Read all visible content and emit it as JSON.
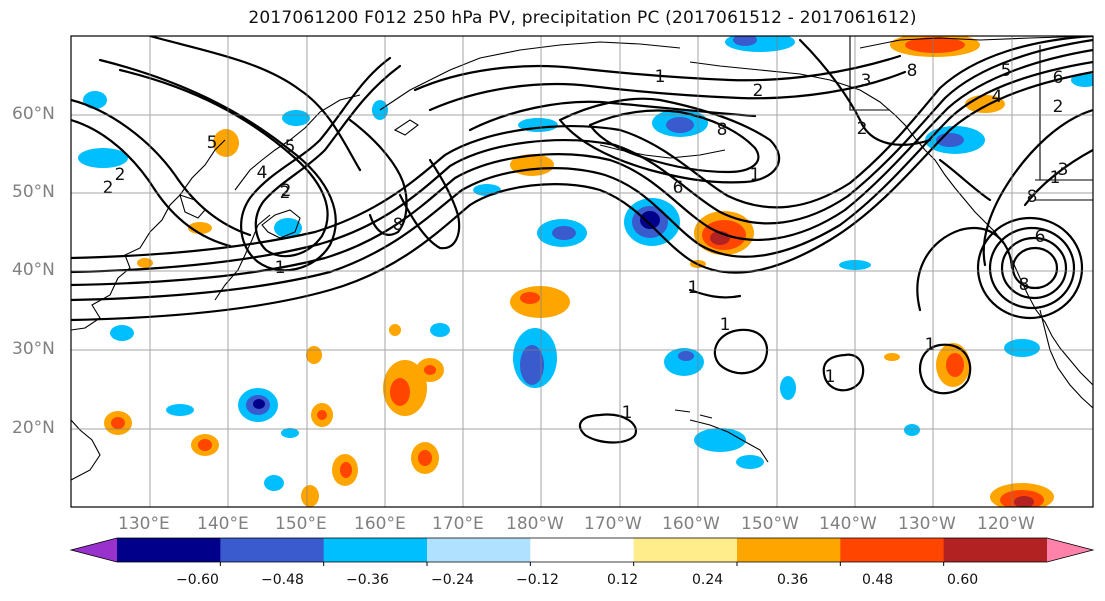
{
  "title": "2017061200 F012 250 hPa PV, precipitation PC (2017061512 - 2017061612)",
  "lat_labels": [
    "60°N",
    "50°N",
    "40°N",
    "30°N",
    "20°N"
  ],
  "lon_labels": [
    "130°E",
    "140°E",
    "150°E",
    "160°E",
    "170°E",
    "180°W",
    "170°W",
    "160°W",
    "150°W",
    "140°W",
    "130°W",
    "120°W"
  ],
  "colorbar": {
    "ticks": [
      "−0.60",
      "−0.48",
      "−0.36",
      "−0.24",
      "−0.12",
      "0.12",
      "0.24",
      "0.36",
      "0.48",
      "0.60"
    ],
    "colors": [
      "#9932cc",
      "#00008b",
      "#3a5bcd",
      "#00bfff",
      "#b0e2ff",
      "#ffffff",
      "#ffec8b",
      "#ffa500",
      "#ff4500",
      "#b22222",
      "#ff82ab"
    ]
  },
  "pv_contour_labels": [
    "2",
    "5",
    "5",
    "2",
    "4",
    "8",
    "2",
    "1",
    "1",
    "3",
    "2",
    "8",
    "6",
    "1",
    "2",
    "8",
    "5",
    "3",
    "8",
    "4",
    "6",
    "1",
    "2",
    "2",
    "6",
    "8",
    "1",
    "1",
    "1",
    "1",
    "1"
  ]
}
